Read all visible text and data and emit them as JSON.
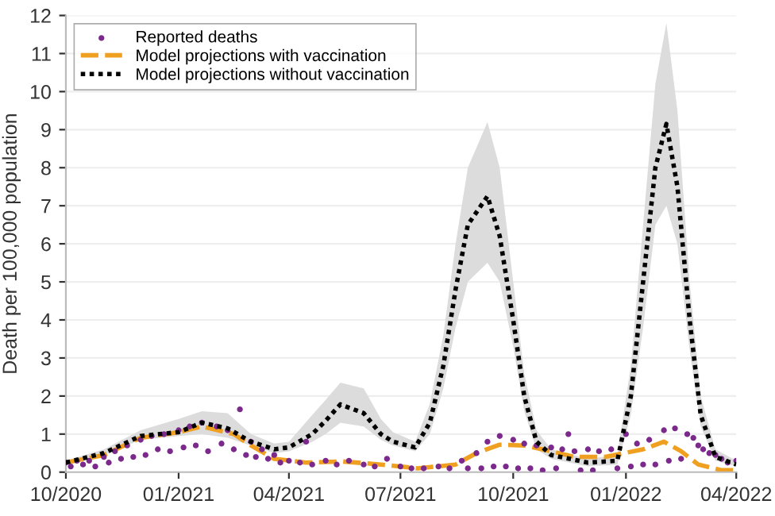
{
  "chart_data": {
    "type": "line",
    "ylabel": "Death per 100,000 population",
    "xlim": [
      "2020-10-01",
      "2022-04-01"
    ],
    "xticks": [
      {
        "value": "2020-10-01",
        "label": "10/2020"
      },
      {
        "value": "2021-01-01",
        "label": "01/2021"
      },
      {
        "value": "2021-04-01",
        "label": "04/2021"
      },
      {
        "value": "2021-07-01",
        "label": "07/2021"
      },
      {
        "value": "2021-10-01",
        "label": "10/2021"
      },
      {
        "value": "2022-01-01",
        "label": "01/2022"
      },
      {
        "value": "2022-04-01",
        "label": "04/2022"
      }
    ],
    "ylim": [
      0,
      12
    ],
    "yticks": [
      0,
      1,
      2,
      3,
      4,
      5,
      6,
      7,
      8,
      9,
      10,
      11,
      12
    ],
    "grid": "y",
    "legend": "top left",
    "series": [
      {
        "name": "Reported deaths",
        "type": "scatter",
        "marker": "circle",
        "color": "#7b2a8c",
        "x": [
          "2020-10-01",
          "2020-10-05",
          "2020-10-10",
          "2020-10-15",
          "2020-10-20",
          "2020-10-25",
          "2020-11-01",
          "2020-11-05",
          "2020-11-10",
          "2020-11-15",
          "2020-11-20",
          "2020-11-25",
          "2020-12-01",
          "2020-12-05",
          "2020-12-10",
          "2020-12-15",
          "2020-12-20",
          "2020-12-25",
          "2021-01-01",
          "2021-01-05",
          "2021-01-10",
          "2021-01-15",
          "2021-01-20",
          "2021-01-25",
          "2021-02-01",
          "2021-02-05",
          "2021-02-10",
          "2021-02-15",
          "2021-02-20",
          "2021-02-25",
          "2021-03-01",
          "2021-03-05",
          "2021-03-10",
          "2021-03-15",
          "2021-03-20",
          "2021-03-25",
          "2021-04-01",
          "2021-04-10",
          "2021-04-15",
          "2021-04-20",
          "2021-05-01",
          "2021-05-10",
          "2021-05-20",
          "2021-06-01",
          "2021-06-10",
          "2021-06-20",
          "2021-07-01",
          "2021-07-10",
          "2021-07-20",
          "2021-08-01",
          "2021-08-10",
          "2021-08-20",
          "2021-08-25",
          "2021-09-01",
          "2021-09-05",
          "2021-09-10",
          "2021-09-15",
          "2021-09-20",
          "2021-09-25",
          "2021-10-01",
          "2021-10-05",
          "2021-10-10",
          "2021-10-15",
          "2021-10-20",
          "2021-10-25",
          "2021-11-01",
          "2021-11-05",
          "2021-11-10",
          "2021-11-15",
          "2021-11-20",
          "2021-11-25",
          "2021-12-01",
          "2021-12-05",
          "2021-12-10",
          "2021-12-20",
          "2021-12-25",
          "2022-01-01",
          "2022-01-05",
          "2022-01-10",
          "2022-01-15",
          "2022-01-20",
          "2022-01-25",
          "2022-02-01",
          "2022-02-05",
          "2022-02-10",
          "2022-02-15",
          "2022-02-20",
          "2022-02-25",
          "2022-03-01",
          "2022-03-05",
          "2022-03-10",
          "2022-03-15",
          "2022-03-20",
          "2022-03-25",
          "2022-04-01"
        ],
        "values": [
          0.25,
          0.15,
          0.3,
          0.2,
          0.3,
          0.15,
          0.4,
          0.25,
          0.55,
          0.35,
          0.7,
          0.4,
          0.85,
          0.45,
          0.95,
          0.6,
          1.0,
          0.55,
          1.1,
          0.65,
          1.2,
          0.7,
          1.3,
          0.55,
          1.2,
          0.75,
          1.1,
          0.6,
          1.65,
          0.45,
          0.8,
          0.4,
          0.6,
          0.35,
          0.45,
          0.25,
          0.3,
          0.25,
          0.8,
          0.2,
          0.3,
          0.2,
          0.3,
          0.2,
          0.15,
          0.35,
          0.15,
          0.1,
          0.1,
          0.15,
          0.1,
          0.3,
          0.1,
          0.5,
          0.1,
          0.8,
          0.15,
          0.95,
          0.15,
          0.85,
          0.1,
          0.75,
          0.1,
          0.7,
          0.05,
          0.65,
          0.1,
          0.6,
          1.0,
          0.55,
          0.05,
          0.6,
          0.05,
          0.55,
          0.6,
          0.1,
          1.0,
          0.15,
          0.75,
          0.2,
          0.85,
          0.2,
          1.1,
          0.3,
          1.15,
          0.35,
          1.0,
          0.9,
          0.7,
          0.6,
          0.5,
          0.45,
          0.35,
          0.25,
          0.3
        ]
      },
      {
        "name": "Model projections with vaccination",
        "line_style": "dashed",
        "color": "#f0a020",
        "x": [
          "2020-10-01",
          "2020-11-01",
          "2020-12-01",
          "2021-01-01",
          "2021-01-20",
          "2021-02-15",
          "2021-03-01",
          "2021-03-20",
          "2021-04-15",
          "2021-05-15",
          "2021-06-15",
          "2021-07-15",
          "2021-08-15",
          "2021-09-01",
          "2021-09-20",
          "2021-10-10",
          "2021-11-01",
          "2021-11-20",
          "2021-12-15",
          "2022-01-15",
          "2022-02-01",
          "2022-02-15",
          "2022-03-01",
          "2022-03-20",
          "2022-04-01"
        ],
        "values": [
          0.25,
          0.45,
          0.9,
          1.05,
          1.2,
          1.0,
          0.7,
          0.35,
          0.25,
          0.28,
          0.2,
          0.1,
          0.2,
          0.5,
          0.72,
          0.7,
          0.55,
          0.4,
          0.4,
          0.6,
          0.8,
          0.55,
          0.2,
          0.05,
          0.05
        ]
      },
      {
        "name": "Model projections without vaccination",
        "line_style": "dotted",
        "color": "#000000",
        "x": [
          "2020-10-01",
          "2020-11-01",
          "2020-12-01",
          "2021-01-01",
          "2021-01-20",
          "2021-02-10",
          "2021-03-01",
          "2021-03-20",
          "2021-04-01",
          "2021-04-20",
          "2021-05-01",
          "2021-05-13",
          "2021-06-01",
          "2021-06-15",
          "2021-06-25",
          "2021-07-13",
          "2021-07-25",
          "2021-08-05",
          "2021-08-15",
          "2021-08-25",
          "2021-09-10",
          "2021-09-20",
          "2021-10-01",
          "2021-10-10",
          "2021-10-20",
          "2021-11-01",
          "2021-12-01",
          "2021-12-25",
          "2022-01-05",
          "2022-01-15",
          "2022-01-25",
          "2022-02-03",
          "2022-02-12",
          "2022-02-22",
          "2022-03-03",
          "2022-03-15",
          "2022-04-01"
        ],
        "values": [
          0.25,
          0.5,
          0.95,
          1.05,
          1.3,
          1.15,
          0.8,
          0.6,
          0.65,
          1.0,
          1.35,
          1.78,
          1.55,
          1.0,
          0.8,
          0.65,
          1.3,
          2.8,
          4.8,
          6.5,
          7.25,
          6.2,
          4.0,
          2.0,
          0.8,
          0.45,
          0.25,
          0.3,
          2.0,
          5.0,
          8.0,
          9.15,
          7.5,
          4.0,
          1.5,
          0.4,
          0.2
        ],
        "lower": [
          0.2,
          0.45,
          0.85,
          0.95,
          1.0,
          0.9,
          0.7,
          0.5,
          0.55,
          0.8,
          1.0,
          1.3,
          1.2,
          0.85,
          0.7,
          0.55,
          1.0,
          2.2,
          3.8,
          5.0,
          5.5,
          5.0,
          3.3,
          1.6,
          0.6,
          0.35,
          0.15,
          0.2,
          1.5,
          3.8,
          6.5,
          7.0,
          6.0,
          3.2,
          1.2,
          0.3,
          0.15
        ],
        "upper": [
          0.3,
          0.6,
          1.1,
          1.4,
          1.6,
          1.55,
          1.0,
          0.75,
          0.8,
          1.5,
          1.9,
          2.35,
          2.2,
          1.4,
          1.05,
          0.8,
          1.8,
          3.6,
          6.0,
          8.0,
          9.2,
          8.0,
          5.0,
          2.6,
          1.1,
          0.6,
          0.35,
          0.45,
          2.8,
          6.5,
          10.2,
          11.8,
          9.5,
          5.0,
          2.0,
          0.6,
          0.3
        ]
      }
    ]
  }
}
